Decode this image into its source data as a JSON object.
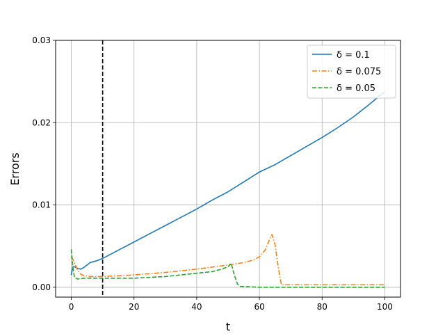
{
  "chart_data": {
    "type": "line",
    "title": "",
    "xlabel": "t",
    "ylabel": "Errors",
    "xlim": [
      -5,
      105
    ],
    "ylim": [
      -0.0012,
      0.03
    ],
    "xticks": [
      0,
      20,
      40,
      60,
      80,
      100
    ],
    "xtick_labels": [
      "0",
      "20",
      "40",
      "60",
      "80",
      "100"
    ],
    "yticks": [
      0.0,
      0.01,
      0.02,
      0.03
    ],
    "ytick_labels": [
      "0.00",
      "0.01",
      "0.02",
      "0.03"
    ],
    "grid": true,
    "legend_position": "top-right",
    "vertical_marker": {
      "x": 10,
      "style": "dashed",
      "color": "#000000"
    },
    "series": [
      {
        "name": "δ = 0.1",
        "color": "#1f77b4",
        "dash": "solid",
        "x": [
          0,
          0.5,
          1,
          2,
          3,
          4,
          5,
          6,
          8,
          10,
          15,
          20,
          25,
          30,
          35,
          40,
          45,
          50,
          55,
          60,
          65,
          70,
          75,
          80,
          85,
          90,
          95,
          100
        ],
        "y": [
          0.0015,
          0.0025,
          0.0025,
          0.0023,
          0.0022,
          0.0024,
          0.0027,
          0.003,
          0.0032,
          0.0035,
          0.0045,
          0.0055,
          0.0065,
          0.0075,
          0.0085,
          0.0095,
          0.0106,
          0.0116,
          0.0128,
          0.014,
          0.0149,
          0.016,
          0.0171,
          0.0182,
          0.0194,
          0.0207,
          0.0222,
          0.0238
        ]
      },
      {
        "name": "δ = 0.075",
        "color": "#ff7f0e",
        "dash": "dashdot",
        "x": [
          0,
          0.5,
          1,
          2,
          3,
          4,
          6,
          10,
          20,
          30,
          40,
          50,
          55,
          58,
          60,
          62,
          63,
          64,
          65,
          66,
          67,
          70,
          80,
          90,
          100
        ],
        "y": [
          0.0037,
          0.0034,
          0.003,
          0.0021,
          0.0016,
          0.0014,
          0.0013,
          0.0013,
          0.0015,
          0.0018,
          0.0022,
          0.0027,
          0.003,
          0.0033,
          0.0037,
          0.0046,
          0.0056,
          0.0064,
          0.0052,
          0.0025,
          0.0003,
          0.0003,
          0.0003,
          0.0003,
          0.0003
        ]
      },
      {
        "name": "δ = 0.05",
        "color": "#2ca02c",
        "dash": "dashed",
        "x": [
          0,
          0.5,
          1,
          2,
          4,
          10,
          20,
          30,
          40,
          45,
          48,
          50,
          51,
          52,
          53,
          54,
          60,
          70,
          80,
          90,
          100
        ],
        "y": [
          0.0046,
          0.0025,
          0.0012,
          0.001,
          0.0011,
          0.0011,
          0.0011,
          0.0013,
          0.0017,
          0.0019,
          0.0022,
          0.0025,
          0.0029,
          0.0015,
          0.0004,
          0.0001,
          0.0,
          0.0,
          0.0,
          0.0,
          0.0
        ]
      }
    ]
  }
}
